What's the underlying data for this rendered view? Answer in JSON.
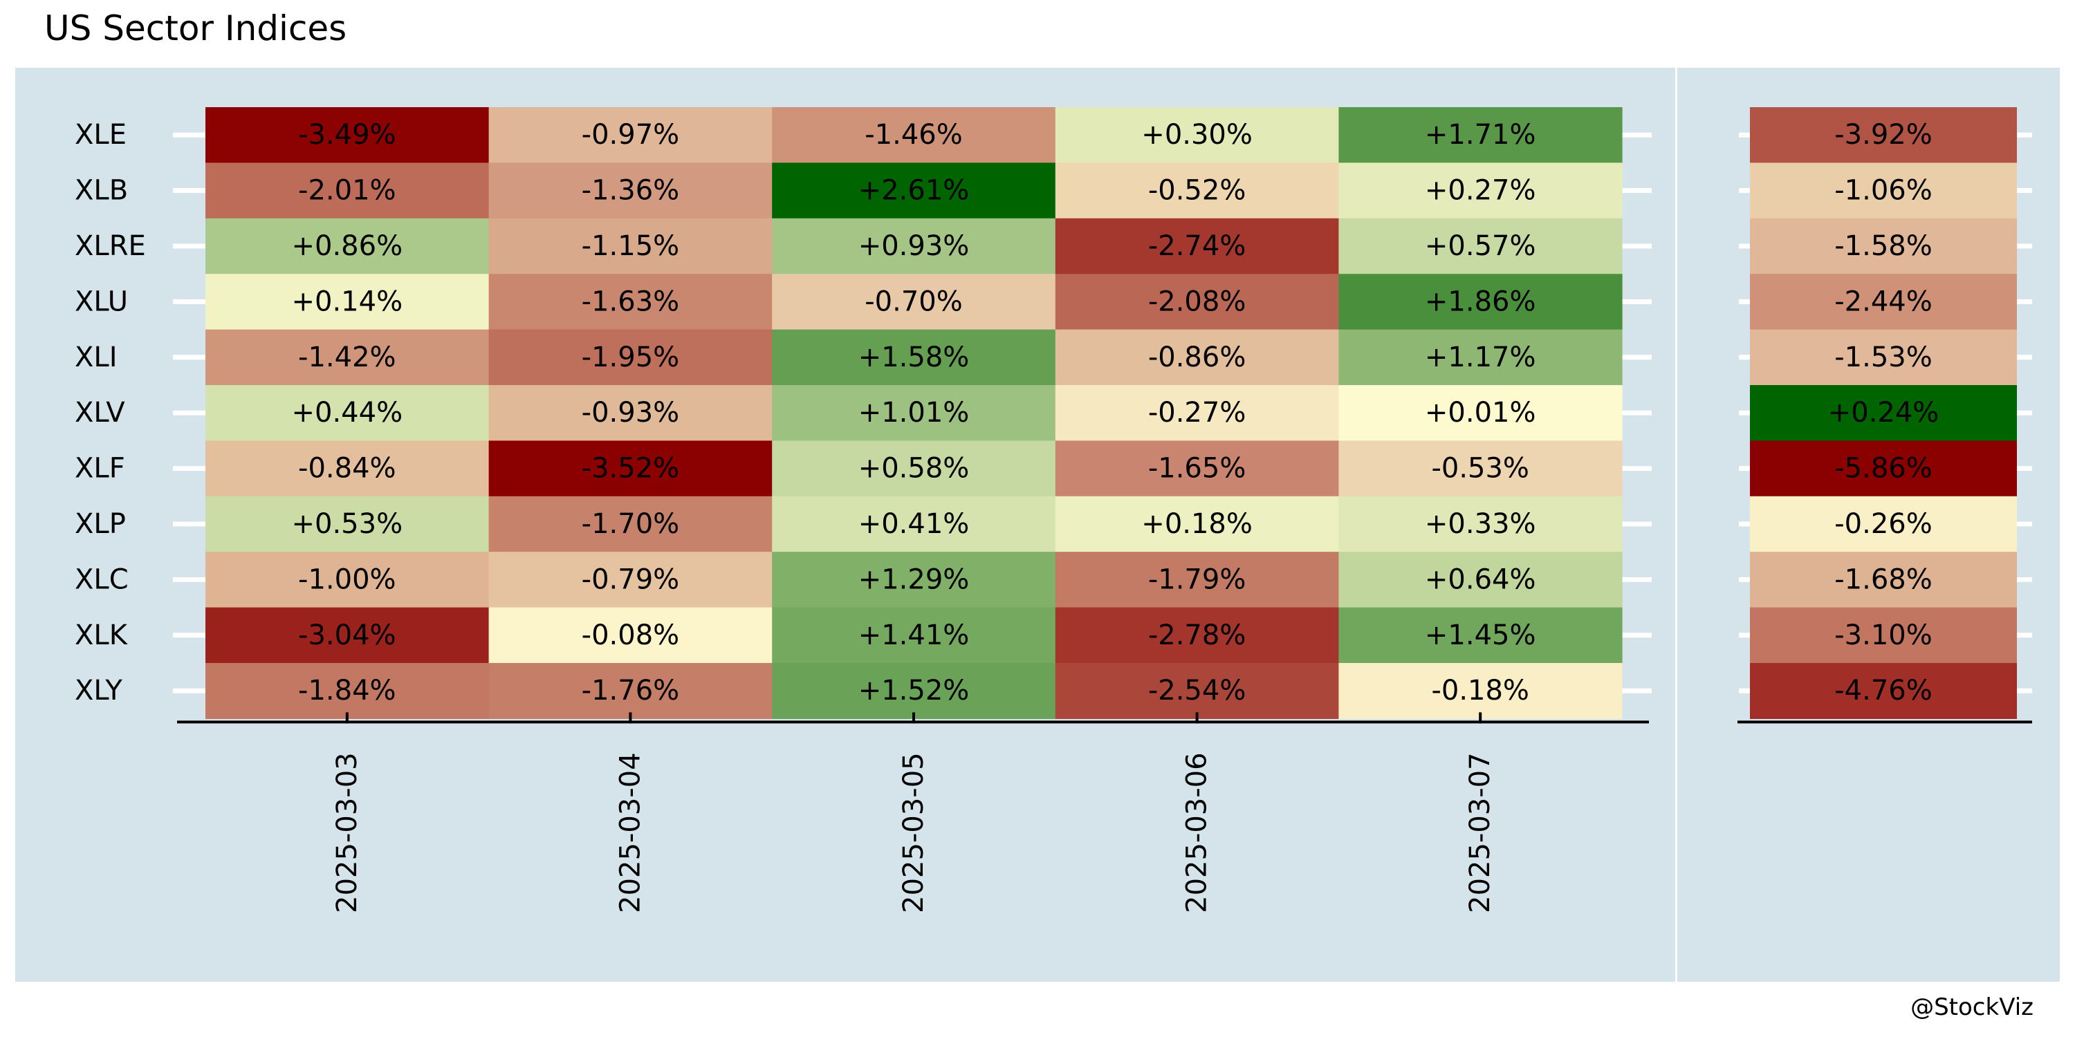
{
  "title": "US Sector Indices",
  "caption": "@StockViz",
  "colors": {
    "panel_background": "#d5e3ea",
    "axis": "#000000",
    "tick_guide": "#ffffff",
    "scale_negative_max": "#8b0000",
    "scale_neutral": "#fffbd0",
    "scale_positive_max": "#006400"
  },
  "chart_data": [
    {
      "type": "heatmap",
      "panel": "daily",
      "rows": [
        "XLE",
        "XLB",
        "XLRE",
        "XLU",
        "XLI",
        "XLV",
        "XLF",
        "XLP",
        "XLC",
        "XLK",
        "XLY"
      ],
      "columns": [
        "2025-03-03",
        "2025-03-04",
        "2025-03-05",
        "2025-03-06",
        "2025-03-07"
      ],
      "values": [
        [
          -3.49,
          -0.97,
          -1.46,
          0.3,
          1.71
        ],
        [
          -2.01,
          -1.36,
          2.61,
          -0.52,
          0.27
        ],
        [
          0.86,
          -1.15,
          0.93,
          -2.74,
          0.57
        ],
        [
          0.14,
          -1.63,
          -0.7,
          -2.08,
          1.86
        ],
        [
          -1.42,
          -1.95,
          1.58,
          -0.86,
          1.17
        ],
        [
          0.44,
          -0.93,
          1.01,
          -0.27,
          0.01
        ],
        [
          -0.84,
          -3.52,
          0.58,
          -1.65,
          -0.53
        ],
        [
          0.53,
          -1.7,
          0.41,
          0.18,
          0.33
        ],
        [
          -1.0,
          -0.79,
          1.29,
          -1.79,
          0.64
        ],
        [
          -3.04,
          -0.08,
          1.41,
          -2.78,
          1.45
        ],
        [
          -1.84,
          -1.76,
          1.52,
          -2.54,
          -0.18
        ]
      ],
      "labels": [
        [
          "-3.49%",
          "-0.97%",
          "-1.46%",
          "+0.30%",
          "+1.71%"
        ],
        [
          "-2.01%",
          "-1.36%",
          "+2.61%",
          "-0.52%",
          "+0.27%"
        ],
        [
          "+0.86%",
          "-1.15%",
          "+0.93%",
          "-2.74%",
          "+0.57%"
        ],
        [
          "+0.14%",
          "-1.63%",
          "-0.70%",
          "-2.08%",
          "+1.86%"
        ],
        [
          "-1.42%",
          "-1.95%",
          "+1.58%",
          "-0.86%",
          "+1.17%"
        ],
        [
          "+0.44%",
          "-0.93%",
          "+1.01%",
          "-0.27%",
          "+0.01%"
        ],
        [
          "-0.84%",
          "-3.52%",
          "+0.58%",
          "-1.65%",
          "-0.53%"
        ],
        [
          "+0.53%",
          "-1.70%",
          "+0.41%",
          "+0.18%",
          "+0.33%"
        ],
        [
          "-1.00%",
          "-0.79%",
          "+1.29%",
          "-1.79%",
          "+0.64%"
        ],
        [
          "-3.04%",
          "-0.08%",
          "+1.41%",
          "-2.78%",
          "+1.45%"
        ],
        [
          "-1.84%",
          "-1.76%",
          "+1.52%",
          "-2.54%",
          "-0.18%"
        ]
      ],
      "color_range": [
        -3.52,
        2.61
      ]
    },
    {
      "type": "heatmap",
      "panel": "cumulative",
      "rows": [
        "XLE",
        "XLB",
        "XLRE",
        "XLU",
        "XLI",
        "XLV",
        "XLF",
        "XLP",
        "XLC",
        "XLK",
        "XLY"
      ],
      "values": [
        -3.92,
        -1.06,
        -1.58,
        -2.44,
        -1.53,
        0.24,
        -5.86,
        -0.26,
        -1.68,
        -3.1,
        -4.76
      ],
      "labels": [
        "-3.92%",
        "-1.06%",
        "-1.58%",
        "-2.44%",
        "-1.53%",
        "+0.24%",
        "-5.86%",
        "-0.26%",
        "-1.68%",
        "-3.10%",
        "-4.76%"
      ],
      "color_range": [
        -5.86,
        0.24
      ]
    }
  ]
}
